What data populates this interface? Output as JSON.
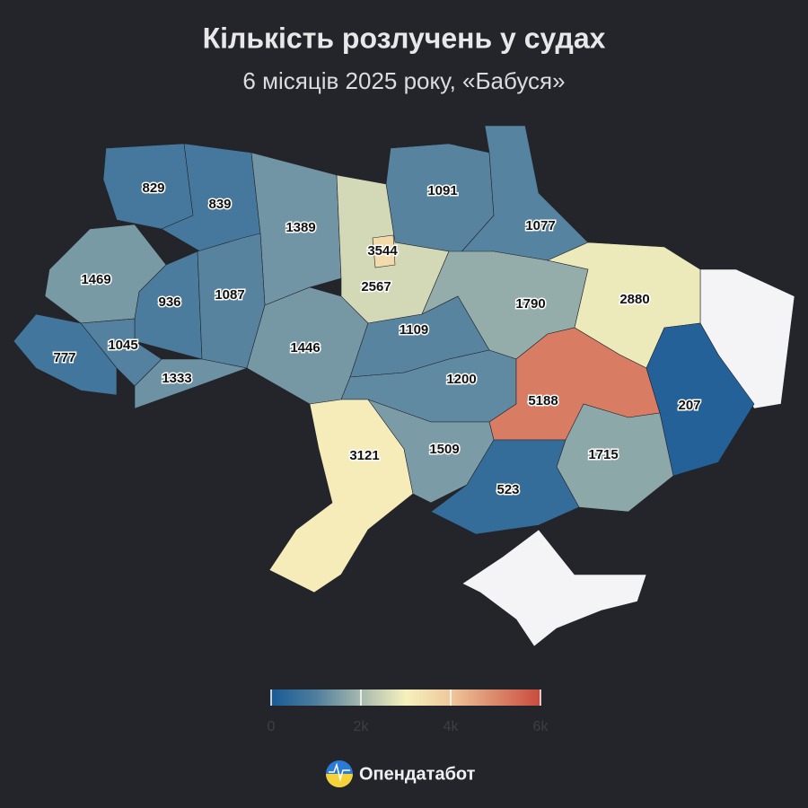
{
  "header": {
    "title": "Кількість розлучень у судах",
    "subtitle": "6 місяців 2025 року, «Бабуся»"
  },
  "chart_data": {
    "type": "choropleth",
    "values": [
      829,
      839,
      1389,
      3544,
      1091,
      1077,
      1469,
      936,
      1087,
      2567,
      1790,
      2880,
      777,
      1045,
      1333,
      1446,
      1109,
      1200,
      5188,
      207,
      3121,
      1509,
      1715,
      523
    ],
    "clim": [
      0,
      6000
    ],
    "color_scale": [
      {
        "value": 0,
        "color": "#185a96"
      },
      {
        "value": 1000,
        "color": "#4f7e9e"
      },
      {
        "value": 2000,
        "color": "#a6b9ad"
      },
      {
        "value": 3000,
        "color": "#f6f1bd"
      },
      {
        "value": 4000,
        "color": "#efc79b"
      },
      {
        "value": 6000,
        "color": "#c94a3c"
      }
    ],
    "ticks": [
      0,
      {
        "value": 2000,
        "label": "2k"
      },
      {
        "value": 4000,
        "label": "4k"
      },
      {
        "value": 6000,
        "label": "6k"
      }
    ]
  },
  "footer": {
    "brand": "Опендатабот"
  }
}
